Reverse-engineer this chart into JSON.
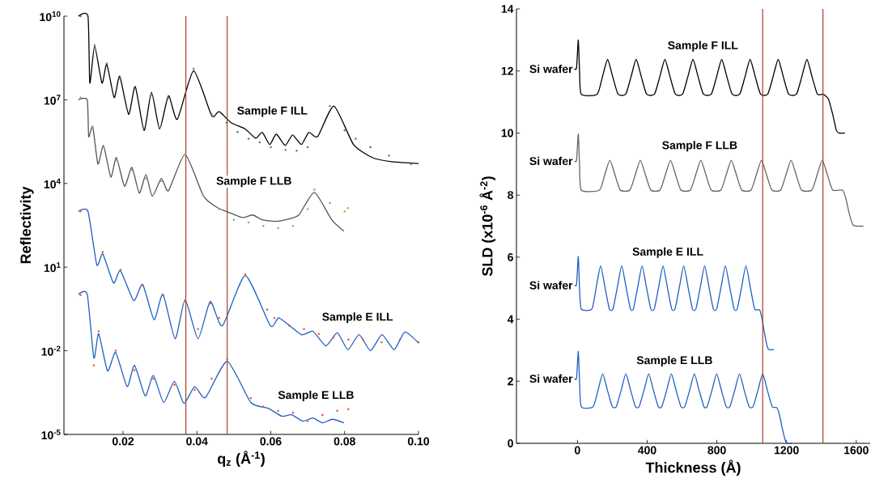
{
  "chart_data": [
    {
      "type": "line",
      "log": "y",
      "xlabel": "q$_{z}$ (Å$^{-1}$)",
      "ylabel": "Reflectivity",
      "xlim": [
        0.004,
        0.1
      ],
      "ylim": [
        1e-05,
        10000000000.0
      ],
      "xticks": [
        0.02,
        0.04,
        0.06,
        0.08,
        {
          "value": 0.1,
          "label": "0.10"
        }
      ],
      "yticks": [
        {
          "value": 1e-05,
          "label": "10$^{-5}$"
        },
        {
          "value": 0.01,
          "label": "10$^{-2}$"
        },
        {
          "value": 10.0,
          "label": "10$^{1}$"
        },
        {
          "value": 10000.0,
          "label": "10$^{4}$"
        },
        {
          "value": 10000000.0,
          "label": "10$^{7}$"
        },
        {
          "value": 10000000000.0,
          "label": "10$^{10}$"
        }
      ],
      "series": [
        {
          "type": "scatter",
          "color": "#2e9a4a",
          "x": [
            0.0085,
            0.0123,
            0.0156,
            0.0191,
            0.0233,
            0.0277,
            0.0323,
            0.0391,
            0.044,
            0.048,
            0.051,
            0.054,
            0.057,
            0.06,
            0.064,
            0.067,
            0.07,
            0.076,
            0.08,
            0.083,
            0.087,
            0.092,
            0.098
          ],
          "values": [
            10000000000.0,
            900000000.0,
            200000000.0,
            60000000.0,
            25000000.0,
            15000000.0,
            12000000.0,
            130000000.0,
            3000000.0,
            1500000.0,
            700000.0,
            400000.0,
            300000.0,
            200000.0,
            160000.0,
            150000.0,
            200000.0,
            6000000.0,
            800000.0,
            400000.0,
            200000.0,
            100000.0,
            50000.0
          ]
        },
        {
          "type": "line",
          "color": "#000000",
          "x": [
            0.0079,
            0.0105,
            0.011,
            0.0123,
            0.0143,
            0.0156,
            0.0176,
            0.0191,
            0.0215,
            0.0233,
            0.0257,
            0.0277,
            0.0299,
            0.0323,
            0.0347,
            0.0391,
            0.044,
            0.046,
            0.0493,
            0.0531,
            0.0559,
            0.0577,
            0.0597,
            0.0615,
            0.0639,
            0.0659,
            0.0683,
            0.0703,
            0.0727,
            0.0771,
            0.0824,
            0.0875,
            0.0928,
            0.1
          ],
          "values": [
            10000000000.0,
            10000000000.0,
            40000000.0,
            850000000.0,
            40000000.0,
            190000000.0,
            12000000.0,
            70000000.0,
            3000000.0,
            30000000.0,
            800000.0,
            19000000.0,
            900000.0,
            14000000.0,
            2000000.0,
            110000000.0,
            2700000.0,
            3800000.0,
            1500000.0,
            900000.0,
            420000.0,
            680000.0,
            250000.0,
            590000.0,
            230000.0,
            550000.0,
            250000.0,
            680000.0,
            480000.0,
            6000000.0,
            250000.0,
            85000.0,
            60000.0,
            52000.0
          ]
        },
        {
          "type": "scatter",
          "color": "#66cc44",
          "x": [
            0.0085,
            0.0118,
            0.0147,
            0.0182,
            0.0224,
            0.0262,
            0.0304,
            0.0368,
            0.0418,
            0.046,
            0.05,
            0.054,
            0.058,
            0.062,
            0.066,
            0.07,
            0.0718,
            0.076,
            0.08,
            0.0809
          ],
          "values": [
            12000000.0,
            1000000.0,
            200000.0,
            70000.0,
            30000.0,
            15000.0,
            12000.0,
            110000.0,
            3500.0,
            1200.0,
            500,
            400,
            300,
            250,
            300,
            1200.0,
            6000.0,
            2000.0,
            1000.0,
            1300.0
          ]
        },
        {
          "type": "line",
          "color": "#555555",
          "x": [
            0.0079,
            0.0103,
            0.0107,
            0.0118,
            0.0132,
            0.0147,
            0.0167,
            0.0182,
            0.0204,
            0.0224,
            0.0244,
            0.0262,
            0.0279,
            0.0304,
            0.0323,
            0.0368,
            0.0418,
            0.0456,
            0.0493,
            0.0524,
            0.0551,
            0.0577,
            0.0612,
            0.0641,
            0.0676,
            0.0718,
            0.0765,
            0.0798
          ],
          "values": [
            10000000.0,
            10000000.0,
            480000.0,
            1100000.0,
            50000.0,
            230000.0,
            17000.0,
            85000.0,
            8000.0,
            38000.0,
            4500.0,
            21000.0,
            3500.0,
            15000.0,
            5500.0,
            110000.0,
            3500.0,
            1350,
            850,
            600,
            740,
            500,
            440,
            500,
            740,
            4800.0,
            500,
            195
          ]
        },
        {
          "type": "scatter",
          "color": "#e8553a",
          "x": [
            0.0085,
            0.0145,
            0.0193,
            0.0253,
            0.0308,
            0.0368,
            0.0403,
            0.0436,
            0.046,
            0.0531,
            0.059,
            0.061,
            0.065,
            0.069,
            0.073,
            0.077,
            0.081,
            0.085,
            0.09,
            0.095,
            0.1
          ],
          "values": [
            1000.0,
            35,
            8,
            2.2,
            1.0,
            0.6,
            0.06,
            0.5,
            0.15,
            5.5,
            0.3,
            0.15,
            0.08,
            0.06,
            0.04,
            0.03,
            0.025,
            0.025,
            0.02,
            0.025,
            0.02
          ]
        },
        {
          "type": "line",
          "color": "#2060c0",
          "x": [
            0.0079,
            0.0105,
            0.0129,
            0.0145,
            0.0174,
            0.0193,
            0.0229,
            0.0253,
            0.0284,
            0.0308,
            0.0341,
            0.0368,
            0.0403,
            0.0436,
            0.0469,
            0.0531,
            0.0599,
            0.0623,
            0.0683,
            0.0714,
            0.0749,
            0.078,
            0.0809,
            0.0839,
            0.087,
            0.0901,
            0.0934,
            0.0963,
            0.1
          ],
          "values": [
            1000.0,
            1000.0,
            12,
            30,
            2.7,
            7.4,
            0.63,
            2.4,
            0.13,
            1.07,
            0.027,
            0.68,
            0.027,
            0.59,
            0.079,
            5,
            0.079,
            0.15,
            0.038,
            0.05,
            0.015,
            0.044,
            0.011,
            0.038,
            0.01,
            0.038,
            0.011,
            0.047,
            0.019
          ]
        },
        {
          "type": "scatter",
          "color": "#e8553a",
          "x": [
            0.0085,
            0.0121,
            0.0134,
            0.018,
            0.0231,
            0.0282,
            0.0339,
            0.0394,
            0.044,
            0.0482,
            0.0546,
            0.058,
            0.062,
            0.066,
            0.07,
            0.074,
            0.078,
            0.081
          ],
          "values": [
            1,
            0.003,
            0.05,
            0.01,
            0.002,
            0.001,
            0.0006,
            0.0004,
            0.001,
            0.005,
            0.0002,
            0.0001,
            7e-05,
            6e-05,
            3e-05,
            5e-05,
            7e-05,
            8e-05
          ]
        },
        {
          "type": "line",
          "color": "#2060c0",
          "x": [
            0.0079,
            0.0103,
            0.0121,
            0.0134,
            0.0158,
            0.018,
            0.0211,
            0.0231,
            0.026,
            0.0282,
            0.031,
            0.0339,
            0.0365,
            0.0394,
            0.0423,
            0.0482,
            0.0546,
            0.0593,
            0.063,
            0.0656,
            0.0687,
            0.0714,
            0.074,
            0.0767,
            0.0798
          ],
          "values": [
            1.07,
            1.07,
            0.0055,
            0.041,
            0.0019,
            0.0087,
            0.00052,
            0.003,
            0.00024,
            0.0013,
            0.00014,
            0.0008,
            0.00013,
            0.00052,
            0.00021,
            0.0042,
            0.00014,
            8.7e-05,
            4.5e-05,
            5.1e-05,
            3e-05,
            3.9e-05,
            2.6e-05,
            3.5e-05,
            2.6e-05
          ]
        }
      ],
      "ref_lines": [
        {
          "axis": "x",
          "value": 0.037,
          "color": "#a8402a"
        },
        {
          "axis": "x",
          "value": 0.0482,
          "color": "#a8402a"
        }
      ],
      "annotations": [
        "Sample F ILL",
        "Sample F LLB",
        "Sample E ILL",
        "Sample E LLB"
      ]
    },
    {
      "type": "line",
      "xlabel": "Thickness (Å)",
      "ylabel": "SLD (x10$^{-6}$ Å$^{-2}$)",
      "xlim": [
        -350,
        1680
      ],
      "ylim": [
        0,
        14
      ],
      "xticks": [
        0,
        400,
        800,
        1200,
        1600
      ],
      "yticks": [
        0,
        2,
        4,
        6,
        8,
        10,
        12,
        14
      ],
      "series": [
        {
          "color": "#000000",
          "x": [
            -17,
            -5,
            5,
            12,
            22,
            113,
            143,
            173,
            203,
            233,
            277,
            307,
            337,
            367,
            397,
            442,
            472,
            502,
            532,
            562,
            603,
            633,
            663,
            693,
            723,
            768,
            798,
            828,
            858,
            888,
            931,
            961,
            991,
            1021,
            1051,
            1092,
            1122,
            1152,
            1182,
            1212,
            1257,
            1287,
            1317,
            1347,
            1377,
            1409,
            1440,
            1465,
            1485,
            1500,
            1535
          ],
          "values": [
            12.07,
            12.1,
            13.0,
            12.0,
            11.25,
            11.25,
            11.8,
            12.37,
            11.8,
            11.25,
            11.25,
            11.8,
            12.37,
            11.8,
            11.25,
            11.25,
            11.8,
            12.37,
            11.8,
            11.25,
            11.25,
            11.8,
            12.37,
            11.8,
            11.25,
            11.25,
            11.8,
            12.37,
            11.8,
            11.25,
            11.25,
            11.8,
            12.37,
            11.8,
            11.25,
            11.25,
            11.8,
            12.37,
            11.8,
            11.25,
            11.25,
            11.8,
            12.37,
            11.8,
            11.25,
            11.25,
            11.1,
            10.6,
            10.1,
            10.0,
            10.0
          ]
        },
        {
          "color": "#666666",
          "x": [
            -17,
            -5,
            5,
            12,
            22,
            126,
            156,
            186,
            216,
            246,
            301,
            331,
            361,
            391,
            421,
            474,
            504,
            534,
            564,
            594,
            648,
            678,
            708,
            738,
            768,
            823,
            853,
            883,
            913,
            943,
            996,
            1026,
            1056,
            1086,
            1116,
            1166,
            1196,
            1226,
            1256,
            1286,
            1345,
            1375,
            1405,
            1435,
            1465,
            1521,
            1540,
            1560,
            1580,
            1600,
            1641
          ],
          "values": [
            9.1,
            9.12,
            9.97,
            9.0,
            8.16,
            8.16,
            8.64,
            9.12,
            8.64,
            8.16,
            8.16,
            8.64,
            9.12,
            8.64,
            8.16,
            8.16,
            8.64,
            9.12,
            8.64,
            8.16,
            8.16,
            8.64,
            9.12,
            8.64,
            8.16,
            8.16,
            8.64,
            9.12,
            8.64,
            8.16,
            8.16,
            8.64,
            9.12,
            8.64,
            8.16,
            8.16,
            8.64,
            9.12,
            8.64,
            8.16,
            8.16,
            8.64,
            9.12,
            8.64,
            8.16,
            8.16,
            7.9,
            7.4,
            7.05,
            7.0,
            7.0
          ]
        },
        {
          "color": "#2060c0",
          "x": [
            -17,
            -5,
            5,
            12,
            22,
            83,
            108,
            133,
            158,
            183,
            204,
            229,
            254,
            279,
            304,
            321,
            346,
            371,
            396,
            421,
            441,
            466,
            491,
            516,
            541,
            560,
            585,
            610,
            635,
            660,
            680,
            705,
            730,
            755,
            780,
            799,
            824,
            849,
            874,
            899,
            917,
            942,
            967,
            992,
            1017,
            1046,
            1060,
            1075,
            1090,
            1100,
            1128
          ],
          "values": [
            5.1,
            5.12,
            6.02,
            5.0,
            4.33,
            4.33,
            5.03,
            5.72,
            5.03,
            4.33,
            4.33,
            5.03,
            5.72,
            5.03,
            4.33,
            4.33,
            5.03,
            5.72,
            5.03,
            4.33,
            4.33,
            5.03,
            5.72,
            5.03,
            4.33,
            4.33,
            5.03,
            5.72,
            5.03,
            4.33,
            4.33,
            5.03,
            5.72,
            5.03,
            4.33,
            4.33,
            5.03,
            5.72,
            5.03,
            4.33,
            4.33,
            5.03,
            5.72,
            5.03,
            4.33,
            4.3,
            4.0,
            3.5,
            3.1,
            3.02,
            3.02
          ]
        },
        {
          "color": "#2060c0",
          "x": [
            -17,
            -5,
            5,
            12,
            22,
            90,
            118,
            145,
            172,
            200,
            223,
            251,
            278,
            305,
            333,
            354,
            382,
            409,
            436,
            464,
            484,
            512,
            539,
            566,
            594,
            616,
            644,
            671,
            698,
            726,
            744,
            772,
            799,
            826,
            854,
            875,
            903,
            930,
            957,
            985,
            1008,
            1036,
            1063,
            1090,
            1118,
            1144,
            1160,
            1175,
            1190,
            1200,
            1232
          ],
          "values": [
            2.09,
            2.1,
            2.96,
            2.0,
            1.18,
            1.18,
            1.71,
            2.24,
            1.71,
            1.18,
            1.18,
            1.71,
            2.24,
            1.71,
            1.18,
            1.18,
            1.71,
            2.24,
            1.71,
            1.18,
            1.18,
            1.71,
            2.24,
            1.71,
            1.18,
            1.18,
            1.71,
            2.24,
            1.71,
            1.18,
            1.18,
            1.71,
            2.24,
            1.71,
            1.18,
            1.18,
            1.71,
            2.24,
            1.71,
            1.18,
            1.18,
            1.71,
            2.24,
            1.71,
            1.18,
            1.15,
            0.9,
            0.5,
            0.15,
            0.0,
            0.0
          ]
        }
      ],
      "ref_lines": [
        {
          "axis": "x",
          "value": 1409,
          "color": "#a8402a"
        },
        {
          "axis": "x",
          "value": 1063,
          "color": "#a8402a"
        }
      ],
      "annotations": [
        "Sample F ILL",
        "Sample F LLB",
        "Sample E ILL",
        "Sample E LLB",
        "Si wafer",
        "Si wafer",
        "Si wafer",
        "Si wafer"
      ]
    }
  ]
}
